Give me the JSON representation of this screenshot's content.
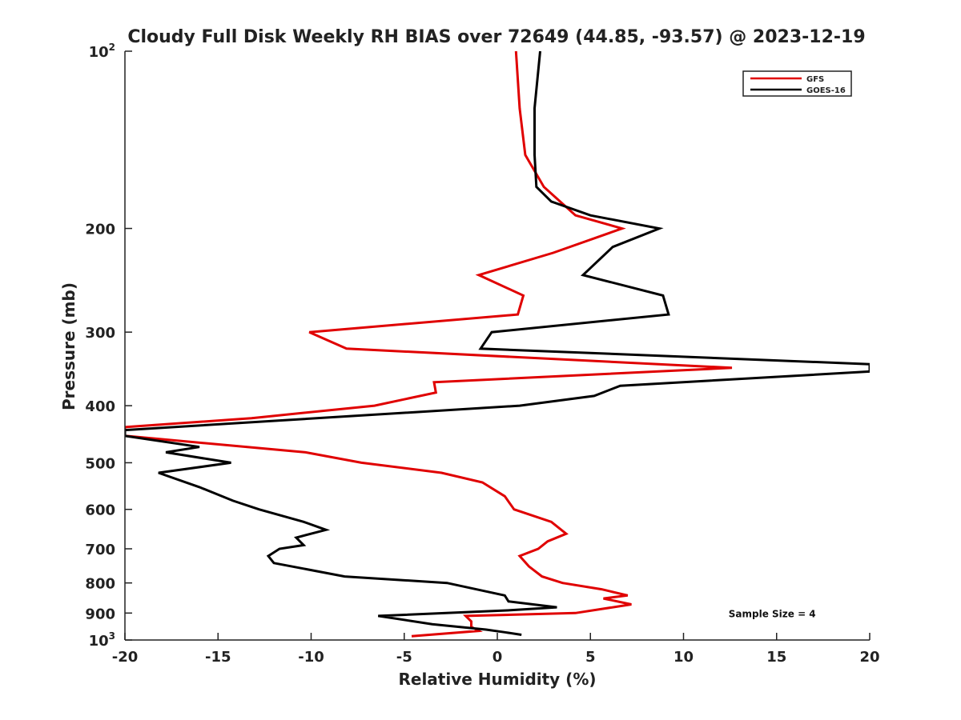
{
  "chart_data": {
    "type": "line",
    "title": "Cloudy Full Disk Weekly RH BIAS over 72649 (44.85, -93.57) @ 2023-12-19",
    "xlabel": "Relative Humidity (%)",
    "ylabel": "Pressure (mb)",
    "xlim": [
      -20,
      20
    ],
    "ylim": [
      100,
      1000
    ],
    "y_scale": "log",
    "y_reversed": true,
    "grid": false,
    "legend_placement": "top-right",
    "x_ticks": [
      "-20",
      "-15",
      "-10",
      "-5",
      "0",
      "5",
      "10",
      "15",
      "20"
    ],
    "x_tick_values": [
      -20,
      -15,
      -10,
      -5,
      0,
      5,
      10,
      15,
      20
    ],
    "y_ticks": [
      {
        "value": 100,
        "base": "10",
        "exp": "2"
      },
      {
        "value": 200,
        "label": "200"
      },
      {
        "value": 300,
        "label": "300"
      },
      {
        "value": 400,
        "label": "400"
      },
      {
        "value": 500,
        "label": "500"
      },
      {
        "value": 600,
        "label": "600"
      },
      {
        "value": 700,
        "label": "700"
      },
      {
        "value": 800,
        "label": "800"
      },
      {
        "value": 900,
        "label": "900"
      },
      {
        "value": 1000,
        "base": "10",
        "exp": "3"
      }
    ],
    "series": [
      {
        "name": "GFS",
        "color": "#e00000",
        "points": [
          [
            1.0,
            100
          ],
          [
            1.2,
            125
          ],
          [
            1.5,
            150
          ],
          [
            2.5,
            170
          ],
          [
            4.2,
            190
          ],
          [
            6.7,
            200
          ],
          [
            3.0,
            220
          ],
          [
            -1.0,
            240
          ],
          [
            1.4,
            260
          ],
          [
            1.1,
            280
          ],
          [
            -10.1,
            300
          ],
          [
            -8.1,
            320
          ],
          [
            12.6,
            345
          ],
          [
            -3.4,
            365
          ],
          [
            -3.3,
            380
          ],
          [
            -6.6,
            400
          ],
          [
            -13.2,
            420
          ],
          [
            -20.0,
            435
          ],
          [
            -20.0,
            450
          ],
          [
            -10.3,
            480
          ],
          [
            -7.3,
            500
          ],
          [
            -3.0,
            520
          ],
          [
            -0.8,
            540
          ],
          [
            0.4,
            570
          ],
          [
            0.9,
            600
          ],
          [
            2.9,
            630
          ],
          [
            3.7,
            660
          ],
          [
            2.7,
            680
          ],
          [
            2.2,
            700
          ],
          [
            1.2,
            720
          ],
          [
            1.7,
            750
          ],
          [
            2.4,
            780
          ],
          [
            3.5,
            800
          ],
          [
            5.6,
            820
          ],
          [
            7.0,
            840
          ],
          [
            5.7,
            850
          ],
          [
            7.2,
            870
          ],
          [
            4.2,
            900
          ],
          [
            -1.7,
            910
          ],
          [
            -1.4,
            930
          ],
          [
            -1.4,
            950
          ],
          [
            -1.0,
            965
          ],
          [
            -4.6,
            985
          ]
        ]
      },
      {
        "name": "GOES-16",
        "color": "#000000",
        "points": [
          [
            2.3,
            100
          ],
          [
            2.0,
            125
          ],
          [
            2.0,
            150
          ],
          [
            2.1,
            170
          ],
          [
            2.9,
            180
          ],
          [
            5.0,
            190
          ],
          [
            8.7,
            200
          ],
          [
            6.2,
            215
          ],
          [
            4.6,
            240
          ],
          [
            8.9,
            260
          ],
          [
            9.2,
            280
          ],
          [
            -0.3,
            300
          ],
          [
            -0.9,
            320
          ],
          [
            20.0,
            340
          ],
          [
            20.0,
            350
          ],
          [
            6.6,
            370
          ],
          [
            5.2,
            385
          ],
          [
            1.2,
            400
          ],
          [
            -20.0,
            440
          ],
          [
            -20.0,
            450
          ],
          [
            -16.0,
            470
          ],
          [
            -17.8,
            480
          ],
          [
            -14.3,
            500
          ],
          [
            -18.2,
            520
          ],
          [
            -16.0,
            550
          ],
          [
            -14.2,
            580
          ],
          [
            -12.8,
            600
          ],
          [
            -10.4,
            630
          ],
          [
            -9.2,
            650
          ],
          [
            -10.8,
            670
          ],
          [
            -10.4,
            690
          ],
          [
            -11.7,
            700
          ],
          [
            -12.3,
            720
          ],
          [
            -12.0,
            740
          ],
          [
            -8.2,
            780
          ],
          [
            -2.7,
            800
          ],
          [
            0.4,
            840
          ],
          [
            0.6,
            860
          ],
          [
            3.2,
            880
          ],
          [
            0.7,
            890
          ],
          [
            -6.4,
            910
          ],
          [
            -3.5,
            940
          ],
          [
            -0.6,
            960
          ],
          [
            0.4,
            970
          ],
          [
            1.3,
            980
          ]
        ]
      }
    ],
    "annotations": [
      {
        "text": "Sample Size = 4",
        "x": 15.0,
        "y": 900
      }
    ]
  }
}
